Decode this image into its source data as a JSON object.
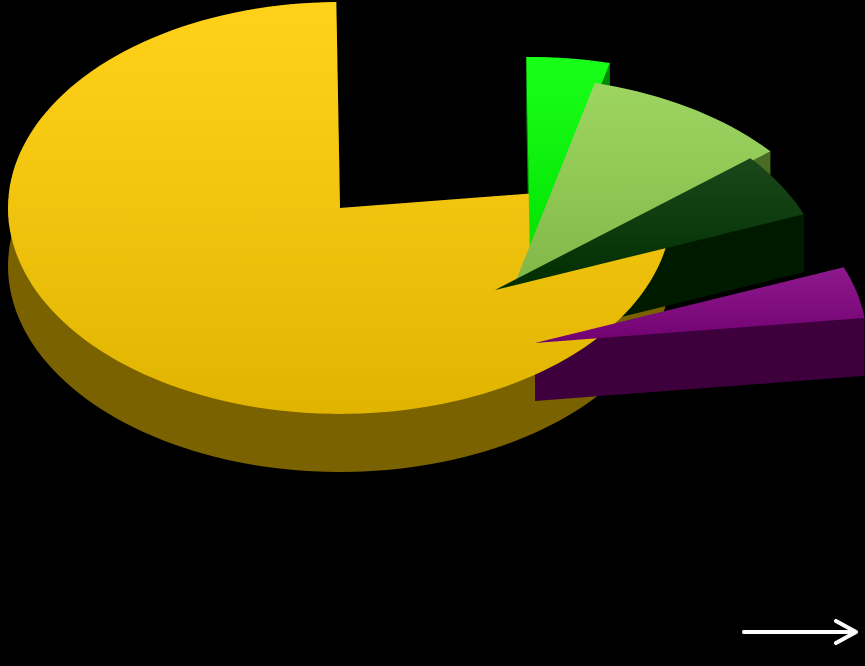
{
  "page": {
    "background": "#000000"
  },
  "chart_data": {
    "type": "pie",
    "style": "3d-exploded",
    "title": "",
    "legend": "none",
    "data_labels": "none",
    "series": [
      {
        "values": [
          76,
          4,
          10,
          5,
          4
        ],
        "colors": [
          "#FFCC00",
          "#00FF00",
          "#92D050",
          "#003300",
          "#800080"
        ],
        "side_colors": [
          "#7A6200",
          "#008A00",
          "#4A6B22",
          "#001A00",
          "#3D003D"
        ]
      }
    ]
  },
  "annotations": {
    "arrow": {
      "direction": "right",
      "color": "#FFFFFF"
    }
  }
}
